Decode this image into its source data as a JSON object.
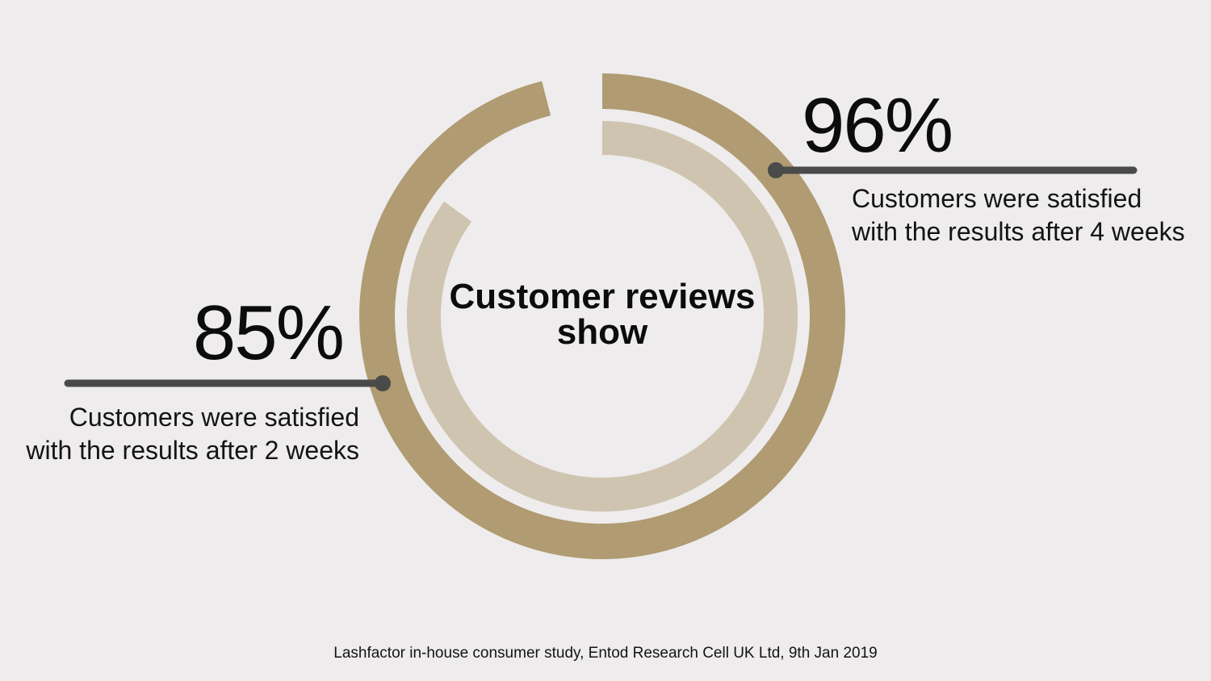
{
  "chart_data": {
    "type": "pie",
    "title": "Customer reviews show",
    "series": [
      {
        "value": 96,
        "label": "96%",
        "description": "Customers were satisfied with the results after 4 weeks",
        "color": "#b09b72"
      },
      {
        "value": 85,
        "label": "85%",
        "description": "Customers were satisfied with the results after 2 weeks",
        "color": "#cfc4b0"
      }
    ],
    "leader_color": "#4a4a4a",
    "background": "#eeecec"
  },
  "footnote": "Lashfactor in-house consumer study, Entod Research Cell UK Ltd, 9th Jan 2019"
}
